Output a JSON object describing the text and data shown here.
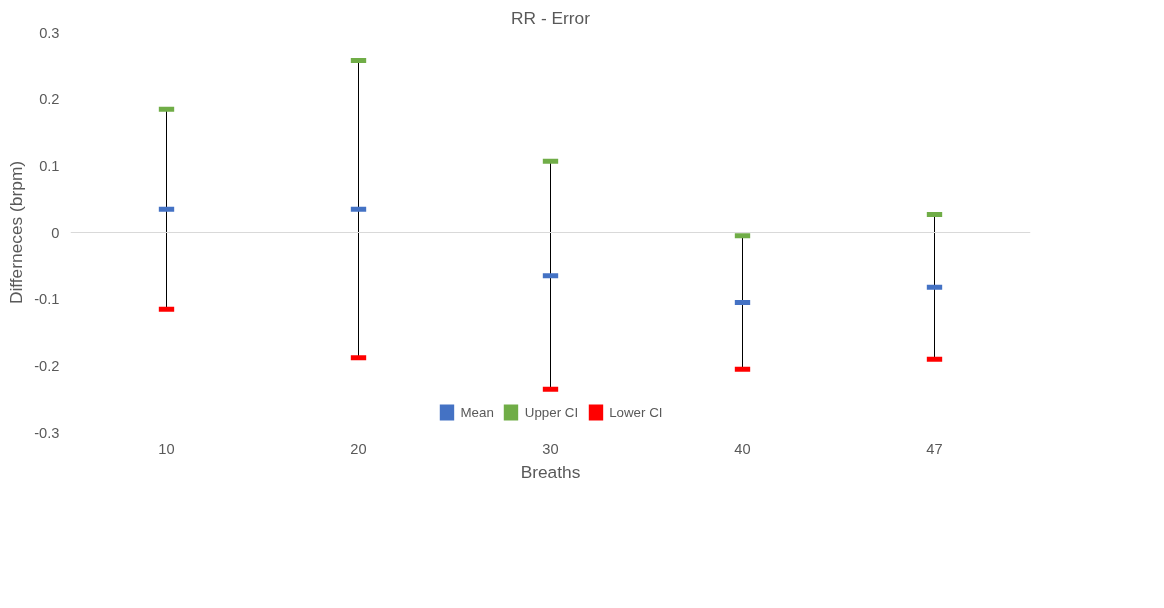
{
  "chart_data": {
    "type": "scatter",
    "title": "RR - Error",
    "xlabel": "Breaths",
    "ylabel": "Differneces (brpm)",
    "categories": [
      "10",
      "20",
      "30",
      "40",
      "47"
    ],
    "series": [
      {
        "name": "Mean",
        "color": "#4472c4",
        "values": [
          0.035,
          0.035,
          -0.065,
          -0.105,
          -0.082
        ]
      },
      {
        "name": "Upper CI",
        "color": "#70ad47",
        "values": [
          0.185,
          0.258,
          0.107,
          -0.005,
          0.027
        ]
      },
      {
        "name": "Lower CI",
        "color": "#ff0000",
        "values": [
          -0.115,
          -0.188,
          -0.235,
          -0.205,
          -0.19
        ]
      }
    ],
    "ylim": [
      -0.3,
      0.3
    ],
    "yticks": [
      -0.3,
      -0.2,
      -0.1,
      0,
      0.1,
      0.2,
      0.3
    ],
    "ref_lines": [
      {
        "axis": "y",
        "value": 0,
        "color": "#d9d9d9"
      }
    ],
    "grid": false,
    "legend": "bottom"
  }
}
